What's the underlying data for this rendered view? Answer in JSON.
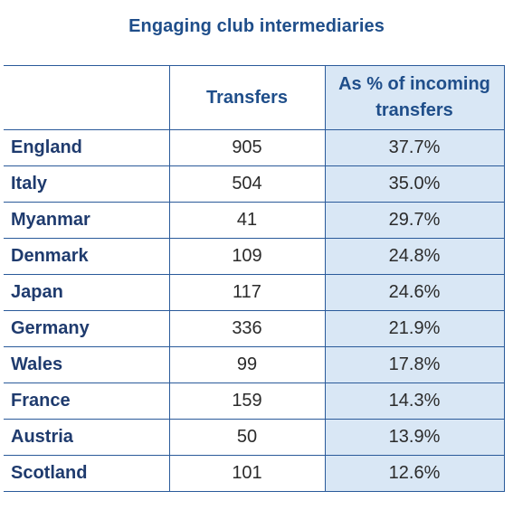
{
  "chart_data": {
    "type": "table",
    "title": "Engaging club intermediaries",
    "columns": [
      "",
      "Transfers",
      "As % of incoming transfers"
    ],
    "rows": [
      {
        "country": "England",
        "transfers": "905",
        "pct": "37.7%"
      },
      {
        "country": "Italy",
        "transfers": "504",
        "pct": "35.0%"
      },
      {
        "country": "Myanmar",
        "transfers": "41",
        "pct": "29.7%"
      },
      {
        "country": "Denmark",
        "transfers": "109",
        "pct": "24.8%"
      },
      {
        "country": "Japan",
        "transfers": "117",
        "pct": "24.6%"
      },
      {
        "country": "Germany",
        "transfers": "336",
        "pct": "21.9%"
      },
      {
        "country": "Wales",
        "transfers": "99",
        "pct": "17.8%"
      },
      {
        "country": "France",
        "transfers": "159",
        "pct": "14.3%"
      },
      {
        "country": "Austria",
        "transfers": "50",
        "pct": "13.9%"
      },
      {
        "country": "Scotland",
        "transfers": "101",
        "pct": "12.6%"
      }
    ],
    "colors": {
      "header_text": "#1f4e8a",
      "rule": "#2a5a9a",
      "highlight_column": "#d9e7f5"
    }
  }
}
